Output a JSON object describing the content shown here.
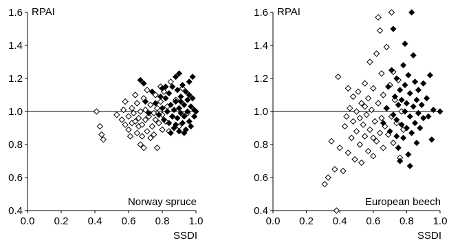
{
  "chart_data": [
    {
      "type": "scatter",
      "title": "Norway spruce",
      "xlabel": "SSDI",
      "ylabel": "RPAI",
      "xlim": [
        0.0,
        1.0
      ],
      "ylim": [
        0.4,
        1.6
      ],
      "xticks": [
        "0.0",
        "0.2",
        "0.4",
        "0.6",
        "0.8",
        "1.0"
      ],
      "yticks": [
        "0.4",
        "0.6",
        "0.8",
        "1.0",
        "1.2",
        "1.4",
        "1.6"
      ],
      "reference_line_y": 1.0,
      "series": [
        {
          "marker": "open-diamond",
          "points": [
            [
              0.41,
              1.0
            ],
            [
              0.43,
              0.91
            ],
            [
              0.44,
              0.86
            ],
            [
              0.45,
              0.83
            ],
            [
              0.53,
              0.98
            ],
            [
              0.56,
              0.95
            ],
            [
              0.57,
              1.01
            ],
            [
              0.58,
              0.92
            ],
            [
              0.6,
              0.89
            ],
            [
              0.6,
              0.97
            ],
            [
              0.61,
              0.85
            ],
            [
              0.62,
              0.93
            ],
            [
              0.62,
              1.02
            ],
            [
              0.63,
              0.99
            ],
            [
              0.64,
              0.94
            ],
            [
              0.65,
              0.87
            ],
            [
              0.65,
              1.05
            ],
            [
              0.66,
              0.91
            ],
            [
              0.66,
              0.96
            ],
            [
              0.67,
              0.8
            ],
            [
              0.67,
              1.0
            ],
            [
              0.68,
              0.92
            ],
            [
              0.69,
              1.08
            ],
            [
              0.69,
              0.78
            ],
            [
              0.7,
              0.95
            ],
            [
              0.7,
              1.01
            ],
            [
              0.71,
              0.88
            ],
            [
              0.71,
              1.13
            ],
            [
              0.72,
              0.97
            ],
            [
              0.73,
              1.04
            ],
            [
              0.73,
              0.84
            ],
            [
              0.74,
              0.91
            ],
            [
              0.75,
              0.99
            ],
            [
              0.75,
              0.86
            ],
            [
              0.76,
              1.1
            ],
            [
              0.76,
              0.95
            ],
            [
              0.77,
              0.78
            ],
            [
              0.77,
              1.02
            ],
            [
              0.78,
              0.93
            ],
            [
              0.79,
              1.15
            ],
            [
              0.79,
              1.06
            ],
            [
              0.8,
              0.89
            ],
            [
              0.8,
              0.98
            ],
            [
              0.81,
              1.12
            ],
            [
              0.82,
              0.94
            ],
            [
              0.83,
              1.03
            ],
            [
              0.84,
              0.88
            ],
            [
              0.85,
              1.18
            ],
            [
              0.86,
              0.97
            ],
            [
              0.88,
              1.07
            ],
            [
              0.9,
              0.91
            ],
            [
              0.92,
              1.14
            ],
            [
              0.95,
              0.99
            ],
            [
              0.58,
              1.06
            ],
            [
              0.64,
              1.1
            ],
            [
              0.68,
              0.85
            ]
          ]
        },
        {
          "marker": "filled-diamond",
          "points": [
            [
              0.67,
              1.19
            ],
            [
              0.69,
              1.17
            ],
            [
              0.7,
              1.06
            ],
            [
              0.72,
              0.99
            ],
            [
              0.74,
              1.12
            ],
            [
              0.76,
              1.05
            ],
            [
              0.78,
              0.98
            ],
            [
              0.8,
              1.14
            ],
            [
              0.8,
              1.02
            ],
            [
              0.81,
              0.95
            ],
            [
              0.82,
              1.08
            ],
            [
              0.83,
              1.0
            ],
            [
              0.84,
              1.11
            ],
            [
              0.84,
              0.93
            ],
            [
              0.85,
              1.04
            ],
            [
              0.86,
              0.97
            ],
            [
              0.86,
              1.15
            ],
            [
              0.87,
              1.01
            ],
            [
              0.87,
              0.9
            ],
            [
              0.88,
              1.21
            ],
            [
              0.88,
              1.06
            ],
            [
              0.89,
              0.96
            ],
            [
              0.89,
              1.13
            ],
            [
              0.9,
              1.23
            ],
            [
              0.9,
              1.02
            ],
            [
              0.9,
              0.88
            ],
            [
              0.91,
              0.99
            ],
            [
              0.91,
              1.09
            ],
            [
              0.92,
              1.16
            ],
            [
              0.92,
              0.93
            ],
            [
              0.93,
              1.04
            ],
            [
              0.93,
              0.97
            ],
            [
              0.94,
              1.12
            ],
            [
              0.94,
              0.89
            ],
            [
              0.95,
              1.0
            ],
            [
              0.95,
              1.07
            ],
            [
              0.96,
              0.94
            ],
            [
              0.96,
              1.18
            ],
            [
              0.97,
              1.03
            ],
            [
              0.97,
              0.91
            ],
            [
              0.98,
              1.21
            ],
            [
              0.98,
              1.08
            ],
            [
              0.99,
              0.97
            ],
            [
              0.99,
              1.01
            ],
            [
              1.0,
              1.0
            ],
            [
              0.85,
              0.87
            ],
            [
              0.88,
              0.92
            ],
            [
              0.93,
              0.87
            ],
            [
              0.96,
              1.1
            ],
            [
              0.82,
              1.15
            ],
            [
              0.79,
              1.09
            ],
            [
              0.91,
              1.06
            ]
          ]
        }
      ]
    },
    {
      "type": "scatter",
      "title": "European beech",
      "xlabel": "SSDI",
      "ylabel": "RPAI",
      "xlim": [
        0.0,
        1.0
      ],
      "ylim": [
        0.4,
        1.6
      ],
      "xticks": [
        "0.0",
        "0.2",
        "0.4",
        "0.6",
        "0.8",
        "1.0"
      ],
      "yticks": [
        "0.4",
        "0.6",
        "0.8",
        "1.0",
        "1.2",
        "1.4",
        "1.6"
      ],
      "reference_line_y": 1.0,
      "series": [
        {
          "marker": "open-diamond",
          "points": [
            [
              0.31,
              0.56
            ],
            [
              0.33,
              0.6
            ],
            [
              0.35,
              0.82
            ],
            [
              0.37,
              0.65
            ],
            [
              0.38,
              0.4
            ],
            [
              0.39,
              1.21
            ],
            [
              0.4,
              0.78
            ],
            [
              0.42,
              0.64
            ],
            [
              0.43,
              0.91
            ],
            [
              0.44,
              0.97
            ],
            [
              0.45,
              1.14
            ],
            [
              0.45,
              0.75
            ],
            [
              0.46,
              1.02
            ],
            [
              0.47,
              0.84
            ],
            [
              0.48,
              0.94
            ],
            [
              0.48,
              1.09
            ],
            [
              0.49,
              0.71
            ],
            [
              0.5,
              0.88
            ],
            [
              0.5,
              1.0
            ],
            [
              0.51,
              1.12
            ],
            [
              0.52,
              0.8
            ],
            [
              0.52,
              0.96
            ],
            [
              0.53,
              1.05
            ],
            [
              0.53,
              0.69
            ],
            [
              0.54,
              0.92
            ],
            [
              0.55,
              1.17
            ],
            [
              0.55,
              0.85
            ],
            [
              0.56,
              0.98
            ],
            [
              0.57,
              0.76
            ],
            [
              0.57,
              1.08
            ],
            [
              0.58,
              1.3
            ],
            [
              0.58,
              0.89
            ],
            [
              0.59,
              1.01
            ],
            [
              0.6,
              0.73
            ],
            [
              0.6,
              1.14
            ],
            [
              0.61,
              0.94
            ],
            [
              0.62,
              1.35
            ],
            [
              0.62,
              0.82
            ],
            [
              0.63,
              1.57
            ],
            [
              0.63,
              1.05
            ],
            [
              0.64,
              0.87
            ],
            [
              0.64,
              1.49
            ],
            [
              0.65,
              0.96
            ],
            [
              0.65,
              1.23
            ],
            [
              0.66,
              0.78
            ],
            [
              0.66,
              1.1
            ],
            [
              0.67,
              0.91
            ],
            [
              0.68,
              1.02
            ],
            [
              0.68,
              1.39
            ],
            [
              0.69,
              0.86
            ],
            [
              0.7,
              1.16
            ],
            [
              0.71,
              0.97
            ],
            [
              0.71,
              1.6
            ],
            [
              0.72,
              0.81
            ],
            [
              0.72,
              1.24
            ],
            [
              0.73,
              1.07
            ],
            [
              0.74,
              0.93
            ],
            [
              0.75,
              1.19
            ],
            [
              0.76,
              0.72
            ],
            [
              0.77,
              1.0
            ],
            [
              0.78,
              0.89
            ],
            [
              0.6,
              0.84
            ],
            [
              0.55,
              1.03
            ]
          ]
        },
        {
          "marker": "filled-diamond",
          "points": [
            [
              0.66,
              0.93
            ],
            [
              0.68,
              1.02
            ],
            [
              0.69,
              1.15
            ],
            [
              0.7,
              0.88
            ],
            [
              0.71,
              1.25
            ],
            [
              0.72,
              0.98
            ],
            [
              0.72,
              1.5
            ],
            [
              0.73,
              1.09
            ],
            [
              0.74,
              0.95
            ],
            [
              0.74,
              1.2
            ],
            [
              0.75,
              1.04
            ],
            [
              0.75,
              0.78
            ],
            [
              0.76,
              1.13
            ],
            [
              0.77,
              0.92
            ],
            [
              0.77,
              1.07
            ],
            [
              0.78,
              1.28
            ],
            [
              0.78,
              0.84
            ],
            [
              0.79,
              1.0
            ],
            [
              0.79,
              1.16
            ],
            [
              0.8,
              0.9
            ],
            [
              0.8,
              1.05
            ],
            [
              0.81,
              1.22
            ],
            [
              0.81,
              0.74
            ],
            [
              0.82,
              0.97
            ],
            [
              0.82,
              1.11
            ],
            [
              0.83,
              1.6
            ],
            [
              0.83,
              0.87
            ],
            [
              0.84,
              1.03
            ],
            [
              0.84,
              1.34
            ],
            [
              0.85,
              0.93
            ],
            [
              0.85,
              1.18
            ],
            [
              0.86,
              1.07
            ],
            [
              0.86,
              0.81
            ],
            [
              0.87,
              0.99
            ],
            [
              0.87,
              1.13
            ],
            [
              0.88,
              0.9
            ],
            [
              0.89,
              1.04
            ],
            [
              0.9,
              1.17
            ],
            [
              0.9,
              0.96
            ],
            [
              0.92,
              1.08
            ],
            [
              0.93,
              0.97
            ],
            [
              0.94,
              1.22
            ],
            [
              0.95,
              0.83
            ],
            [
              0.96,
              1.01
            ],
            [
              1.0,
              1.0
            ],
            [
              0.76,
              0.7
            ],
            [
              0.82,
              0.67
            ],
            [
              0.79,
              1.41
            ],
            [
              0.74,
              0.85
            ]
          ]
        }
      ]
    }
  ]
}
